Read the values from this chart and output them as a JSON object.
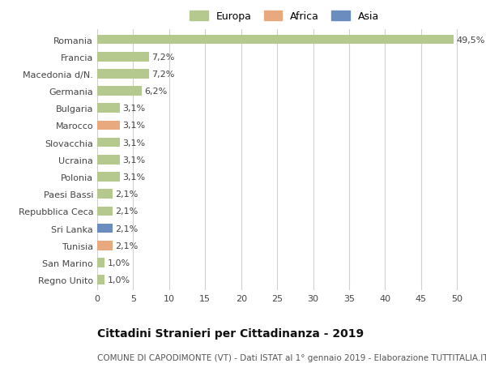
{
  "categories": [
    "Romania",
    "Francia",
    "Macedonia d/N.",
    "Germania",
    "Bulgaria",
    "Marocco",
    "Slovacchia",
    "Ucraina",
    "Polonia",
    "Paesi Bassi",
    "Repubblica Ceca",
    "Sri Lanka",
    "Tunisia",
    "San Marino",
    "Regno Unito"
  ],
  "values": [
    49.5,
    7.2,
    7.2,
    6.2,
    3.1,
    3.1,
    3.1,
    3.1,
    3.1,
    2.1,
    2.1,
    2.1,
    2.1,
    1.0,
    1.0
  ],
  "labels": [
    "49,5%",
    "7,2%",
    "7,2%",
    "6,2%",
    "3,1%",
    "3,1%",
    "3,1%",
    "3,1%",
    "3,1%",
    "2,1%",
    "2,1%",
    "2,1%",
    "2,1%",
    "1,0%",
    "1,0%"
  ],
  "continents": [
    "Europa",
    "Europa",
    "Europa",
    "Europa",
    "Europa",
    "Africa",
    "Europa",
    "Europa",
    "Europa",
    "Europa",
    "Europa",
    "Asia",
    "Africa",
    "Europa",
    "Europa"
  ],
  "colors": {
    "Europa": "#b5c98e",
    "Africa": "#e8a97e",
    "Asia": "#6b8cbf"
  },
  "legend_items": [
    "Europa",
    "Africa",
    "Asia"
  ],
  "legend_colors": [
    "#b5c98e",
    "#e8a97e",
    "#6b8cbf"
  ],
  "xlim": [
    0,
    52
  ],
  "xticks": [
    0,
    5,
    10,
    15,
    20,
    25,
    30,
    35,
    40,
    45,
    50
  ],
  "title": "Cittadini Stranieri per Cittadinanza - 2019",
  "subtitle": "COMUNE DI CAPODIMONTE (VT) - Dati ISTAT al 1° gennaio 2019 - Elaborazione TUTTITALIA.IT",
  "bg_color": "#ffffff",
  "grid_color": "#d0d0d0",
  "bar_height": 0.55,
  "label_fontsize": 8,
  "tick_fontsize": 8,
  "title_fontsize": 10,
  "subtitle_fontsize": 7.5
}
